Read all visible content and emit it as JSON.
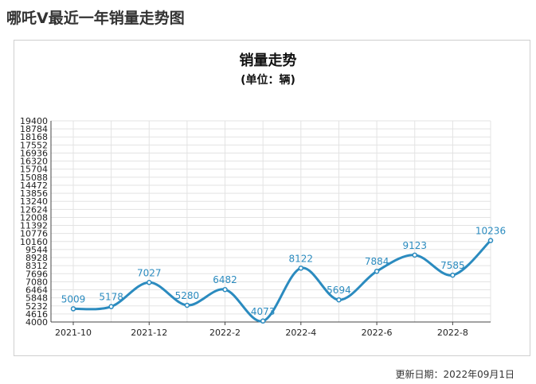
{
  "page": {
    "title": "哪吒V最近一年销量走势图",
    "update_label": "更新日期：2022年09月1日"
  },
  "chart_data": {
    "type": "line",
    "title": "销量走势",
    "subtitle": "(单位：辆)",
    "x_tick_labels": [
      "2021-10",
      "2021-12",
      "2022-2",
      "2022-4",
      "2022-6",
      "2022-8"
    ],
    "y_tick_labels": [
      "4000",
      "4616",
      "5232",
      "5848",
      "6464",
      "7080",
      "7696",
      "8312",
      "8928",
      "9544",
      "10160",
      "10776",
      "11392",
      "12008",
      "12624",
      "13240",
      "13856",
      "14472",
      "15088",
      "15704",
      "16320",
      "16936",
      "17552",
      "18168",
      "18784",
      "19400"
    ],
    "ylim": [
      4000,
      19400
    ],
    "grid": true,
    "series": [
      {
        "x": [
          "2021-10",
          "2021-11",
          "2021-12",
          "2022-1",
          "2022-2",
          "2022-3",
          "2022-4",
          "2022-5",
          "2022-6",
          "2022-7",
          "2022-8",
          "2022-9"
        ],
        "values": [
          5009,
          5178,
          7027,
          5280,
          6482,
          4073,
          8122,
          5694,
          7884,
          9123,
          7585,
          10236
        ],
        "color": "#2b8bbf"
      }
    ]
  }
}
